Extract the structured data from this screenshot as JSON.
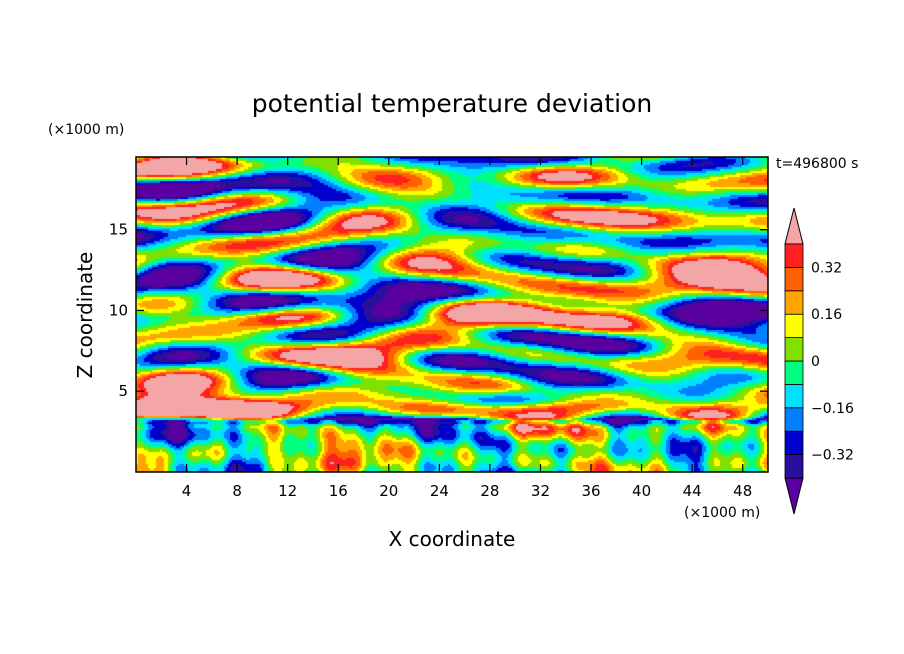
{
  "chart_data": {
    "type": "heatmap",
    "title": "potential temperature deviation",
    "xlabel": "X coordinate",
    "ylabel": "Z coordinate",
    "x_unit": "(×1000 m)",
    "y_unit": "(×1000 m)",
    "time_label": "t=496800 s",
    "xlim": [
      0,
      50
    ],
    "ylim": [
      0,
      19.5
    ],
    "x_ticks": [
      4,
      8,
      12,
      16,
      20,
      24,
      28,
      32,
      36,
      40,
      44,
      48
    ],
    "y_ticks": [
      5,
      10,
      15
    ],
    "colorbar": {
      "levels": [
        -0.4,
        -0.32,
        -0.24,
        -0.16,
        -0.08,
        0,
        0.08,
        0.16,
        0.24,
        0.32,
        0.4
      ],
      "labels": [
        "0.32",
        "0.16",
        "0",
        "-0.16",
        "-0.32"
      ],
      "label_values": [
        0.32,
        0.16,
        0,
        -0.16,
        -0.32
      ],
      "colors": [
        "#5a00a0",
        "#2a0f9c",
        "#0000cd",
        "#0080ff",
        "#00e0ff",
        "#00ff80",
        "#80e000",
        "#ffff00",
        "#ffa500",
        "#ff6000",
        "#ff2020",
        "#f4a5a5"
      ]
    }
  }
}
